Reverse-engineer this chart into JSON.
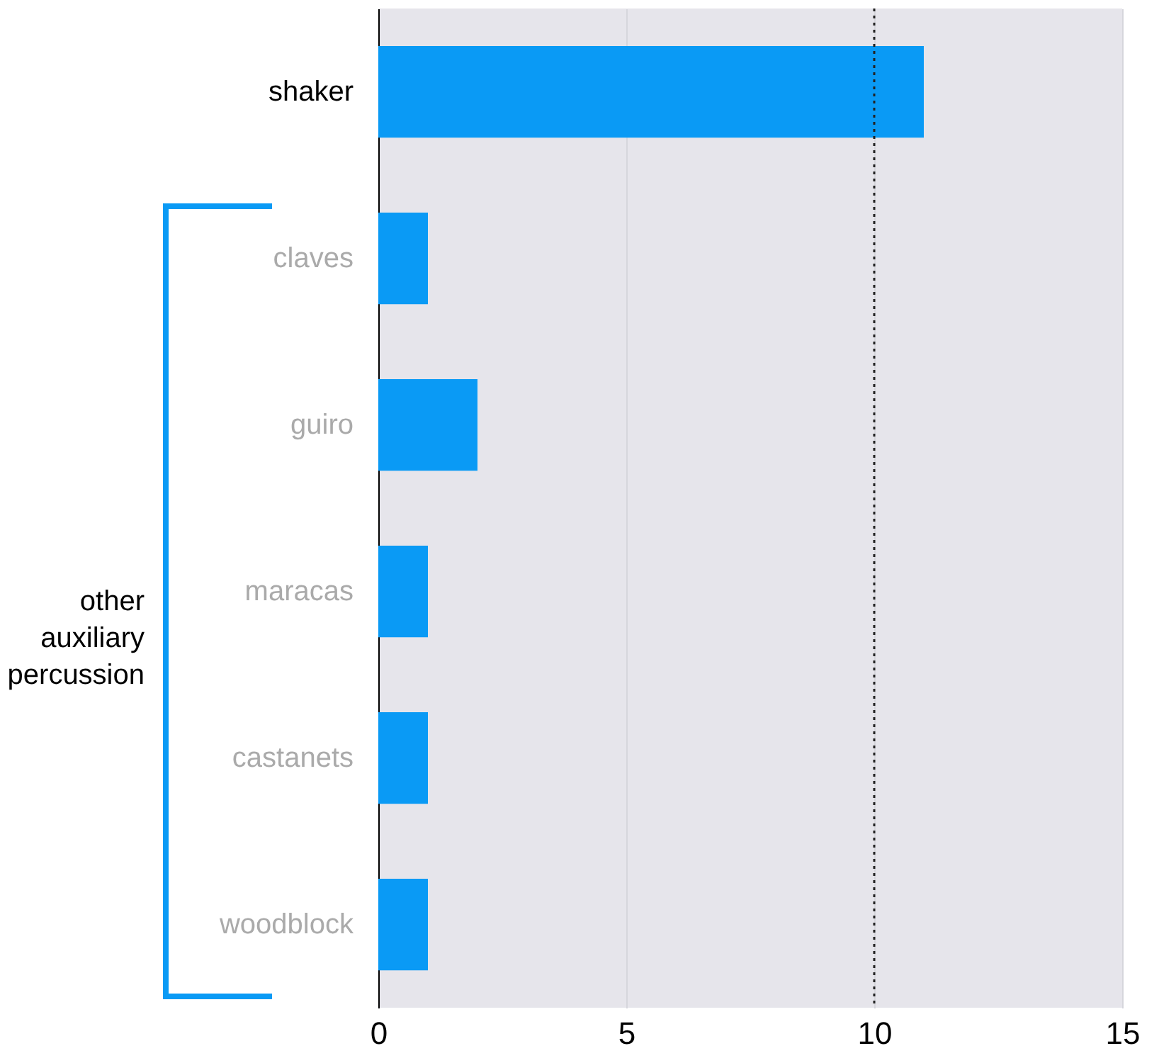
{
  "chart_data": {
    "type": "bar",
    "orientation": "horizontal",
    "categories": [
      "shaker",
      "claves",
      "guiro",
      "maracas",
      "castanets",
      "woodblock"
    ],
    "values": [
      11,
      1,
      2,
      1,
      1,
      1
    ],
    "color": "#0a9af5",
    "xlim": [
      0,
      15
    ],
    "xticks": [
      0,
      5,
      10,
      15
    ],
    "grid": "x",
    "ref_lines": [
      {
        "axis": "x",
        "value": 10,
        "label": null,
        "color": "#222222",
        "line_style": "dotted"
      }
    ],
    "annotations": [
      "other auxiliary percussion"
    ]
  }
}
